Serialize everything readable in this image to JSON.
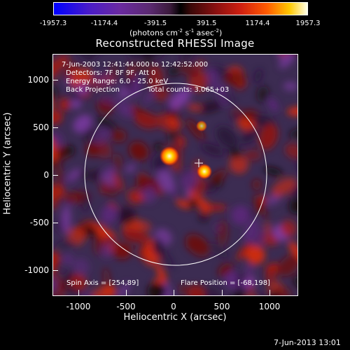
{
  "colorbar": {
    "tick_labels": [
      "-1957.3",
      "-1174.4",
      "-391.5",
      "391.5",
      "1174.4",
      "1957.3"
    ],
    "units_text": "(photons cm",
    "units_exp1": "-2",
    "units_mid": " s",
    "units_exp2": "-1",
    "units_end": " asec",
    "units_exp3": "-2",
    "units_close": ")"
  },
  "title": "Reconstructed RHESSI Image",
  "info": {
    "time_range": "7-Jun-2003 12:41:44.000 to 12:42:52.000",
    "detectors": "Detectors: 7F 8F 9F, Att 0",
    "energy": "Energy Range: 6.0 - 25.0 keV",
    "method": "Back Projection",
    "counts": "Total counts: 3.065+03",
    "spin_axis": "Spin Axis = [254,89]",
    "flare_position": "Flare Position = [-68,198]"
  },
  "axes": {
    "xlabel": "Heliocentric X (arcsec)",
    "ylabel": "Heliocentric Y (arcsec)",
    "x_ticks": [
      "-1000",
      "-500",
      "0",
      "500",
      "1000"
    ],
    "y_ticks": [
      "1000",
      "500",
      "0",
      "-500",
      "-1000"
    ]
  },
  "footer_date": "7-Jun-2013 13:01",
  "colors": {
    "background": "#000000",
    "limb": "#ffffff",
    "hot_spot": "#fff4a0"
  }
}
